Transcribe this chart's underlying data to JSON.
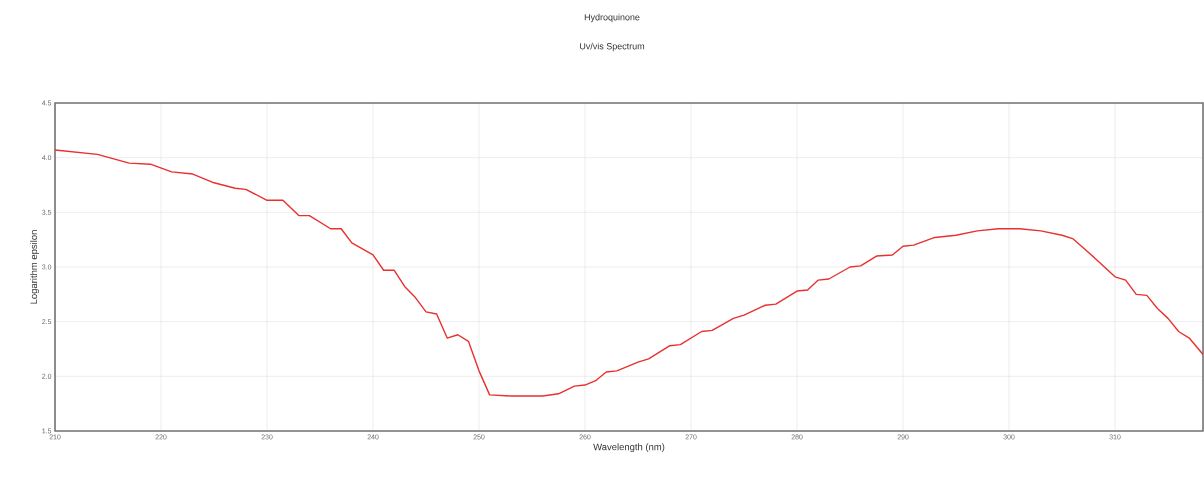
{
  "chart_data": {
    "type": "line",
    "title": "Hydroquinone",
    "subtitle": "Uv/vis Spectrum",
    "xlabel": "Wavelength (nm)",
    "ylabel": "Logarithm epsilon",
    "xlim": [
      210,
      318.3
    ],
    "ylim": [
      1.5,
      4.5
    ],
    "xticks": [
      210,
      220,
      230,
      240,
      250,
      260,
      270,
      280,
      290,
      300,
      310
    ],
    "yticks": [
      {
        "value": 1.5,
        "label": "1.5"
      },
      {
        "value": 2,
        "label": "2.0"
      },
      {
        "value": 2.5,
        "label": "2.5"
      },
      {
        "value": 3,
        "label": "3.0"
      },
      {
        "value": 3.5,
        "label": "3.5"
      },
      {
        "value": 4,
        "label": "4.0"
      },
      {
        "value": 4.5,
        "label": "4.5"
      }
    ],
    "grid": true,
    "marker": "none",
    "line_style": "solid",
    "series": [
      {
        "color": "#e8302e",
        "x": [
          210,
          214,
          217,
          219,
          221,
          223,
          225,
          227,
          228,
          230,
          231.5,
          233,
          234,
          236,
          237,
          238,
          240,
          241,
          242,
          243,
          244,
          245,
          246,
          247,
          248,
          249,
          250,
          251,
          253,
          256,
          257.5,
          259,
          260,
          261,
          262,
          263,
          265,
          266,
          268,
          269,
          271,
          272,
          274,
          275,
          277,
          278,
          280,
          281,
          282,
          283,
          285,
          286,
          287.5,
          289,
          290,
          291,
          293,
          295,
          297,
          299,
          301,
          303,
          305,
          306,
          308,
          310,
          311,
          312,
          313,
          314,
          315,
          316,
          317,
          318.3
        ],
        "values": [
          4.07,
          4.03,
          3.95,
          3.94,
          3.87,
          3.85,
          3.77,
          3.72,
          3.71,
          3.61,
          3.61,
          3.47,
          3.47,
          3.35,
          3.35,
          3.22,
          3.11,
          2.97,
          2.97,
          2.82,
          2.72,
          2.59,
          2.57,
          2.35,
          2.38,
          2.32,
          2.05,
          1.83,
          1.82,
          1.82,
          1.84,
          1.91,
          1.92,
          1.96,
          2.04,
          2.05,
          2.13,
          2.16,
          2.28,
          2.29,
          2.41,
          2.42,
          2.53,
          2.56,
          2.65,
          2.66,
          2.78,
          2.79,
          2.88,
          2.89,
          3.0,
          3.01,
          3.1,
          3.11,
          3.19,
          3.2,
          3.27,
          3.29,
          3.33,
          3.35,
          3.35,
          3.33,
          3.29,
          3.26,
          3.09,
          2.91,
          2.88,
          2.75,
          2.74,
          2.62,
          2.53,
          2.41,
          2.35,
          2.2
        ]
      }
    ]
  }
}
